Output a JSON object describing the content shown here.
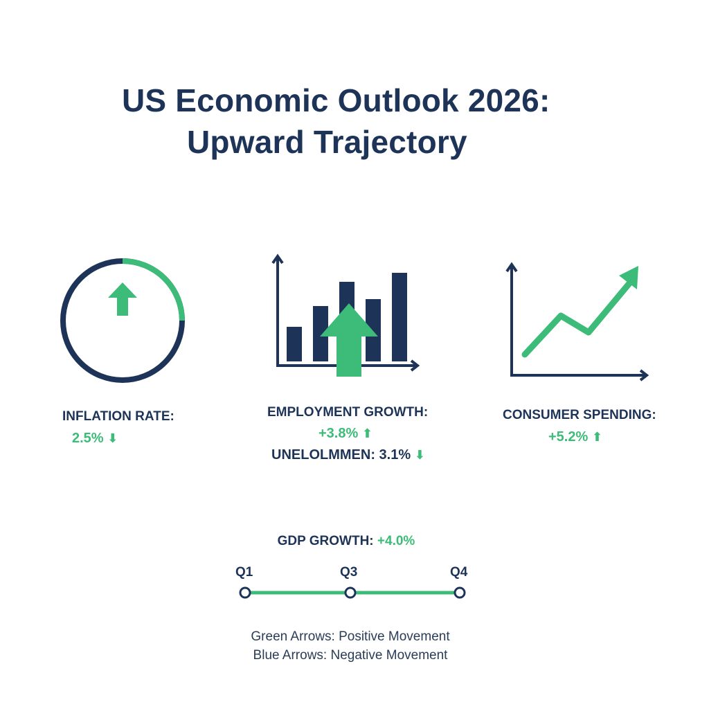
{
  "title": {
    "line1": "US Economic Outlook 2026:",
    "line2": "Upward Trajectory"
  },
  "colors": {
    "navy": "#1d3458",
    "green": "#3dbb78"
  },
  "inflation": {
    "label": "INFLATION RATE:",
    "value": "2.5%",
    "arrow": "⬇",
    "icon": "gauge-up-arrow-icon"
  },
  "employment": {
    "label": "EMPLOYMENT GROWTH:",
    "value": "+3.8%",
    "arrow": "⬆",
    "unemployment_label": "UNELOLMMEN:",
    "unemployment_value": "3.1%",
    "unemployment_arrow": "⬇",
    "icon": "bar-chart-up-arrow-icon"
  },
  "consumer": {
    "label": "CONSUMER SPENDING:",
    "value": "+5.2%",
    "arrow": "⬆",
    "icon": "line-chart-trend-up-icon"
  },
  "gdp": {
    "label": "GDP GROWTH:",
    "value": "+4.0%",
    "quarters": [
      "Q1",
      "Q3",
      "Q4"
    ]
  },
  "legend": {
    "line1": "Green Arrows: Positive Movement",
    "line2": "Blue Arrows: Negative Movement"
  }
}
